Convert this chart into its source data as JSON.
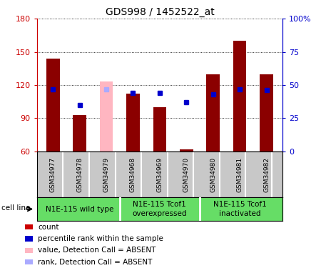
{
  "title": "GDS998 / 1452522_at",
  "samples": [
    "GSM34977",
    "GSM34978",
    "GSM34979",
    "GSM34968",
    "GSM34969",
    "GSM34970",
    "GSM34980",
    "GSM34981",
    "GSM34982"
  ],
  "counts": [
    144,
    93,
    123,
    112,
    100,
    62,
    130,
    160,
    130
  ],
  "percentiles": [
    47,
    35,
    47,
    44,
    44,
    37,
    43,
    47,
    46
  ],
  "absent": [
    false,
    false,
    true,
    false,
    false,
    false,
    false,
    false,
    false
  ],
  "ylim_left": [
    60,
    180
  ],
  "ylim_right": [
    0,
    100
  ],
  "yticks_left": [
    60,
    90,
    120,
    150,
    180
  ],
  "yticks_right": [
    0,
    25,
    50,
    75,
    100
  ],
  "bar_color_normal": "#8B0000",
  "bar_color_absent": "#FFB6C1",
  "square_color_normal": "#0000CC",
  "square_color_absent": "#AAAAFF",
  "groups": [
    {
      "label": "N1E-115 wild type",
      "indices": [
        0,
        1,
        2
      ]
    },
    {
      "label": "N1E-115 Tcof1\noverexpressed",
      "indices": [
        3,
        4,
        5
      ]
    },
    {
      "label": "N1E-115 Tcof1\ninactivated",
      "indices": [
        6,
        7,
        8
      ]
    }
  ],
  "group_bg_color": "#66DD66",
  "tick_bg_color": "#C8C8C8",
  "cell_line_label": "cell line",
  "bar_width": 0.5,
  "legend_entries": [
    {
      "color": "#CC0000",
      "label": "count"
    },
    {
      "color": "#0000CC",
      "label": "percentile rank within the sample"
    },
    {
      "color": "#FFB6C1",
      "label": "value, Detection Call = ABSENT"
    },
    {
      "color": "#AAAAFF",
      "label": "rank, Detection Call = ABSENT"
    }
  ]
}
